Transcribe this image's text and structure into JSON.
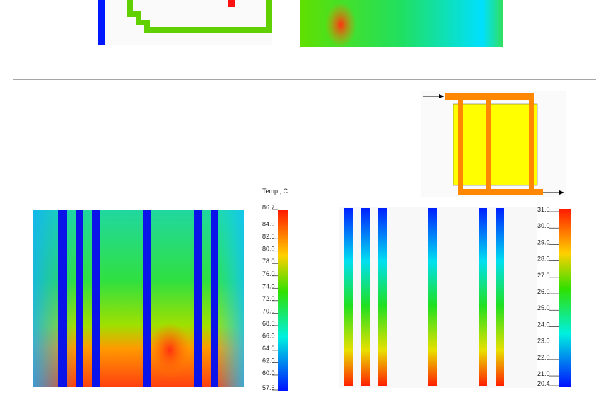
{
  "legend_left": {
    "title": "Temp., C",
    "ticks": [
      "86.7",
      "84.0",
      "82.0",
      "80.0",
      "78.0",
      "76.0",
      "74.0",
      "72.0",
      "70.0",
      "68.0",
      "66.0",
      "64.0",
      "62.0",
      "60.0",
      "57.6"
    ]
  },
  "legend_right": {
    "ticks": [
      "31.0",
      "30.0",
      "29.0",
      "28.0",
      "27.0",
      "26.0",
      "25.0",
      "24.0",
      "23.0",
      "22.0",
      "21.0",
      "20.4"
    ]
  }
}
